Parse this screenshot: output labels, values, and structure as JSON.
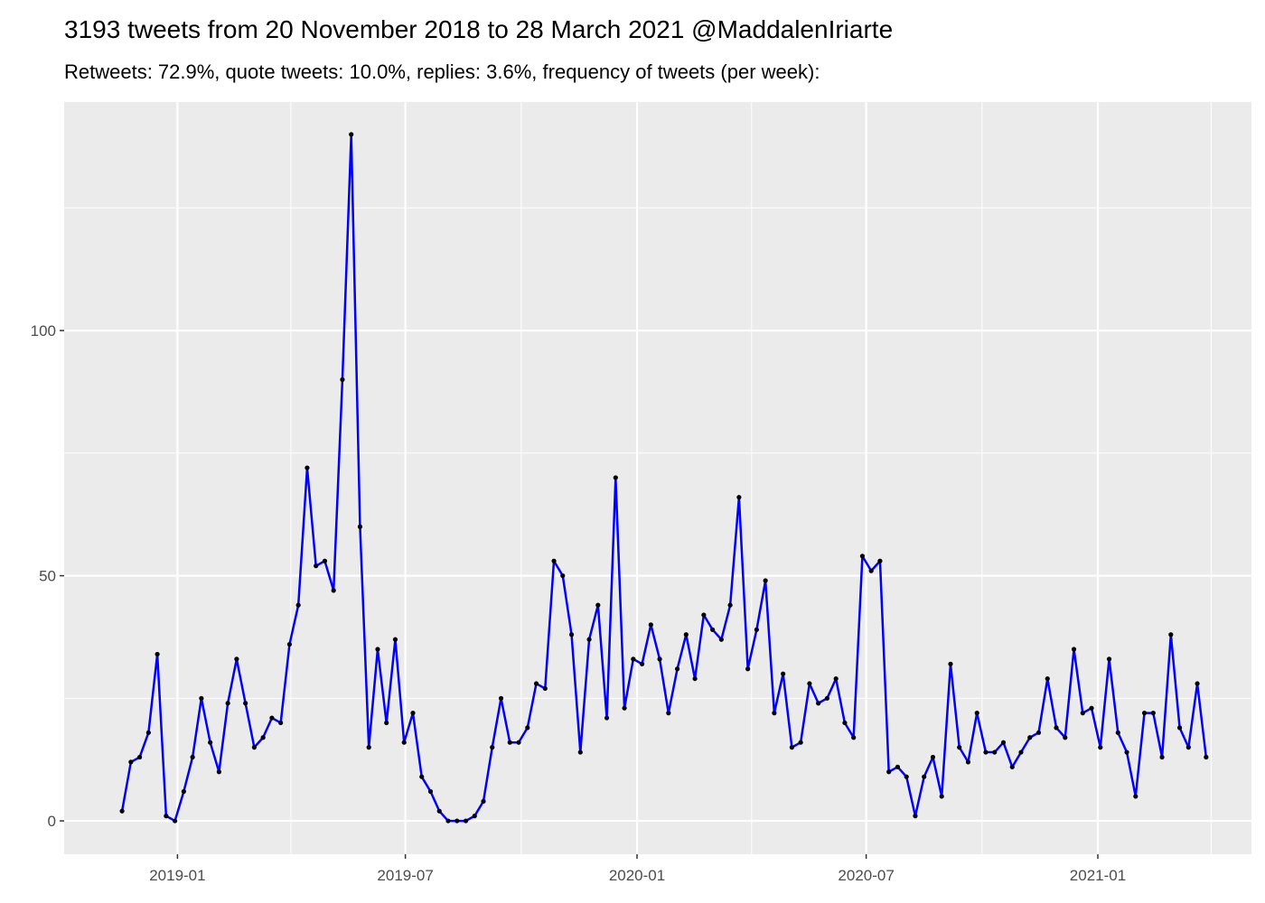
{
  "chart_data": {
    "type": "line",
    "title": "3193 tweets from 20 November 2018 to 28 March 2021 @MaddalenIriarte",
    "subtitle": "Retweets: 72.9%, quote tweets: 10.0%, replies: 3.6%, frequency of tweets (per week):",
    "x": [
      "2018-11-18",
      "2018-11-25",
      "2018-12-02",
      "2018-12-09",
      "2018-12-16",
      "2018-12-23",
      "2018-12-30",
      "2019-01-06",
      "2019-01-13",
      "2019-01-20",
      "2019-01-27",
      "2019-02-03",
      "2019-02-10",
      "2019-02-17",
      "2019-02-24",
      "2019-03-03",
      "2019-03-10",
      "2019-03-17",
      "2019-03-24",
      "2019-03-31",
      "2019-04-07",
      "2019-04-14",
      "2019-04-21",
      "2019-04-28",
      "2019-05-05",
      "2019-05-12",
      "2019-05-19",
      "2019-05-26",
      "2019-06-02",
      "2019-06-09",
      "2019-06-16",
      "2019-06-23",
      "2019-06-30",
      "2019-07-07",
      "2019-07-14",
      "2019-07-21",
      "2019-07-28",
      "2019-08-04",
      "2019-08-11",
      "2019-08-18",
      "2019-08-25",
      "2019-09-01",
      "2019-09-08",
      "2019-09-15",
      "2019-09-22",
      "2019-09-29",
      "2019-10-06",
      "2019-10-13",
      "2019-10-20",
      "2019-10-27",
      "2019-11-03",
      "2019-11-10",
      "2019-11-17",
      "2019-11-24",
      "2019-12-01",
      "2019-12-08",
      "2019-12-15",
      "2019-12-22",
      "2019-12-29",
      "2020-01-05",
      "2020-01-12",
      "2020-01-19",
      "2020-01-26",
      "2020-02-02",
      "2020-02-09",
      "2020-02-16",
      "2020-02-23",
      "2020-03-01",
      "2020-03-08",
      "2020-03-15",
      "2020-03-22",
      "2020-03-29",
      "2020-04-05",
      "2020-04-12",
      "2020-04-19",
      "2020-04-26",
      "2020-05-03",
      "2020-05-10",
      "2020-05-17",
      "2020-05-24",
      "2020-05-31",
      "2020-06-07",
      "2020-06-14",
      "2020-06-21",
      "2020-06-28",
      "2020-07-05",
      "2020-07-12",
      "2020-07-19",
      "2020-07-26",
      "2020-08-02",
      "2020-08-09",
      "2020-08-16",
      "2020-08-23",
      "2020-08-30",
      "2020-09-06",
      "2020-09-13",
      "2020-09-20",
      "2020-09-27",
      "2020-10-04",
      "2020-10-11",
      "2020-10-18",
      "2020-10-25",
      "2020-11-01",
      "2020-11-08",
      "2020-11-15",
      "2020-11-22",
      "2020-11-29",
      "2020-12-06",
      "2020-12-13",
      "2020-12-20",
      "2020-12-27",
      "2021-01-03",
      "2021-01-10",
      "2021-01-17",
      "2021-01-24",
      "2021-01-31",
      "2021-02-07",
      "2021-02-14",
      "2021-02-21",
      "2021-02-28",
      "2021-03-07",
      "2021-03-14",
      "2021-03-21",
      "2021-03-28"
    ],
    "values": [
      2,
      12,
      13,
      18,
      34,
      1,
      0,
      6,
      13,
      25,
      16,
      10,
      24,
      33,
      24,
      15,
      17,
      21,
      20,
      36,
      44,
      72,
      52,
      53,
      47,
      90,
      140,
      60,
      15,
      35,
      20,
      37,
      16,
      22,
      9,
      6,
      2,
      0,
      0,
      0,
      1,
      4,
      15,
      25,
      16,
      16,
      19,
      28,
      27,
      53,
      50,
      38,
      14,
      37,
      44,
      21,
      70,
      23,
      33,
      32,
      40,
      33,
      22,
      31,
      38,
      29,
      42,
      39,
      37,
      44,
      66,
      31,
      39,
      49,
      22,
      30,
      15,
      16,
      28,
      24,
      25,
      29,
      20,
      17,
      54,
      51,
      53,
      10,
      11,
      9,
      1,
      9,
      13,
      5,
      32,
      15,
      12,
      22,
      14,
      14,
      16,
      11,
      14,
      17,
      18,
      29,
      19,
      17,
      35,
      22,
      23,
      15,
      33,
      18,
      14,
      5,
      22,
      22,
      13,
      38,
      19,
      15,
      28,
      13
    ],
    "color": "#0000ff",
    "point_color": "#000000",
    "xlim": [
      "2018-10-03",
      "2021-05-03"
    ],
    "xticks": [
      {
        "value": "2019-01-01",
        "label": "2019-01"
      },
      {
        "value": "2019-07-01",
        "label": "2019-07"
      },
      {
        "value": "2020-01-01",
        "label": "2020-01"
      },
      {
        "value": "2020-07-01",
        "label": "2020-07"
      },
      {
        "value": "2021-01-01",
        "label": "2021-01"
      }
    ],
    "xminorticks": [
      "2018-10-01",
      "2019-04-01",
      "2019-10-01",
      "2020-04-01",
      "2020-10-01",
      "2021-04-01"
    ],
    "ylim": [
      -6.8,
      146.6
    ],
    "yticks": [
      0,
      50,
      100
    ],
    "yminorticks": [
      25,
      75,
      125
    ],
    "grid": true
  }
}
